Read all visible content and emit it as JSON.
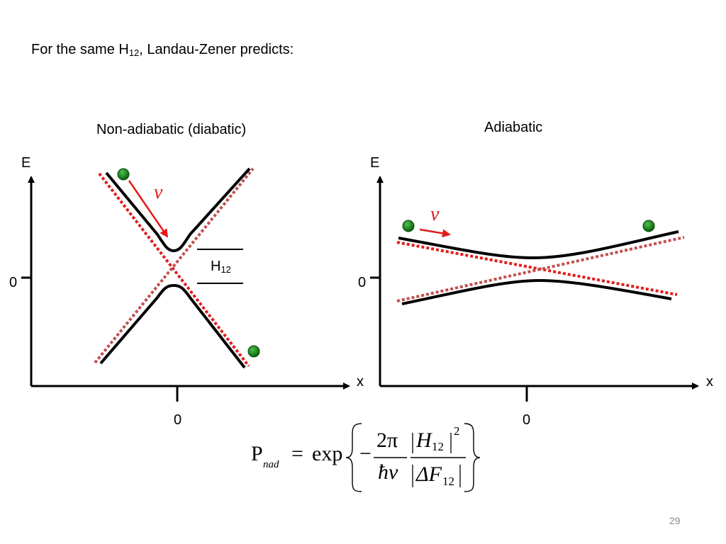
{
  "headline": {
    "prefix": "For the same H",
    "subscript": "12",
    "suffix": ", Landau-Zener predicts:"
  },
  "panels": {
    "left": {
      "title": "Non-adiabatic (diabatic)",
      "y_axis_label": "E",
      "x_axis_label": "x",
      "y_zero_label": "0",
      "x_zero_label": "0",
      "gap_label": "H",
      "gap_label_subscript": "12",
      "velocity_label": "v"
    },
    "right": {
      "title": "Adiabatic",
      "y_axis_label": "E",
      "x_axis_label": "x",
      "y_zero_label": "0",
      "x_zero_label": "0",
      "velocity_label": "v"
    }
  },
  "formula": {
    "lhs": "P",
    "lhs_subscript": "nad",
    "equals": "=",
    "func": "exp",
    "minus": "−",
    "numerator_coeff": "2π",
    "denominator_coeff": "ħv",
    "numerator_symbol": "H",
    "numerator_subscript": "12",
    "numerator_power": "2",
    "denominator_symbol": "ΔF",
    "denominator_subscript": "12"
  },
  "colors": {
    "curve": "#000000",
    "diabatic_dotted": "#e31b1b",
    "diabatic_dotted_muted": "#c0504d",
    "particle": "#1a7a1a",
    "velocity_arrow": "#e31b1b",
    "page_number": "#8c8c8c"
  },
  "page_number": "29"
}
